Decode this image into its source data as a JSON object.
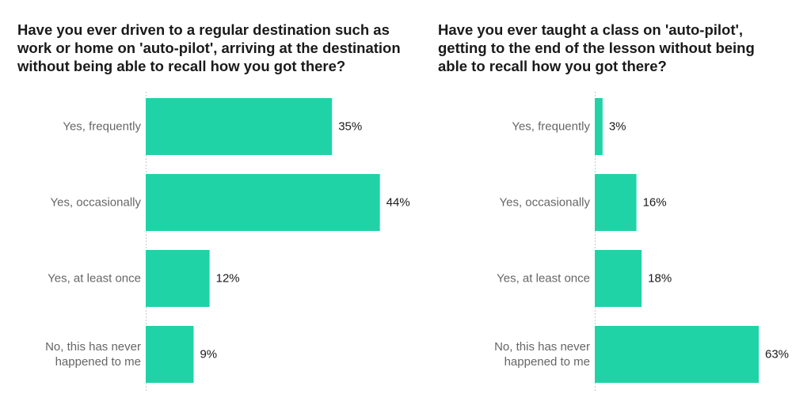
{
  "colors": {
    "bar": "#20d3a7",
    "title": "#1a1a1a",
    "category_text": "#666666"
  },
  "chart_data": [
    {
      "type": "bar",
      "orientation": "horizontal",
      "title": "Have you ever driven to a regular destination such as work or home on 'auto-pilot', arriving at the destination without being able to recall how you got there?",
      "categories": [
        [
          "Yes, frequently"
        ],
        [
          "Yes, occasionally"
        ],
        [
          "Yes, at least once"
        ],
        [
          "No, this has never",
          "happened to me"
        ]
      ],
      "values": [
        35,
        44,
        12,
        9
      ],
      "value_labels": [
        "35%",
        "44%",
        "12%",
        "9%"
      ],
      "xlim": [
        0,
        50
      ],
      "grid": false
    },
    {
      "type": "bar",
      "orientation": "horizontal",
      "title": "Have you ever taught a class on 'auto-pilot', getting to the end of the lesson without being able to recall how you got there?",
      "categories": [
        [
          "Yes, frequently"
        ],
        [
          "Yes, occasionally"
        ],
        [
          "Yes, at least once"
        ],
        [
          "No, this has never",
          "happened to me"
        ]
      ],
      "values": [
        3,
        16,
        18,
        63
      ],
      "value_labels": [
        "3%",
        "16%",
        "18%",
        "63%"
      ],
      "xlim": [
        0,
        70
      ],
      "grid": false
    }
  ]
}
